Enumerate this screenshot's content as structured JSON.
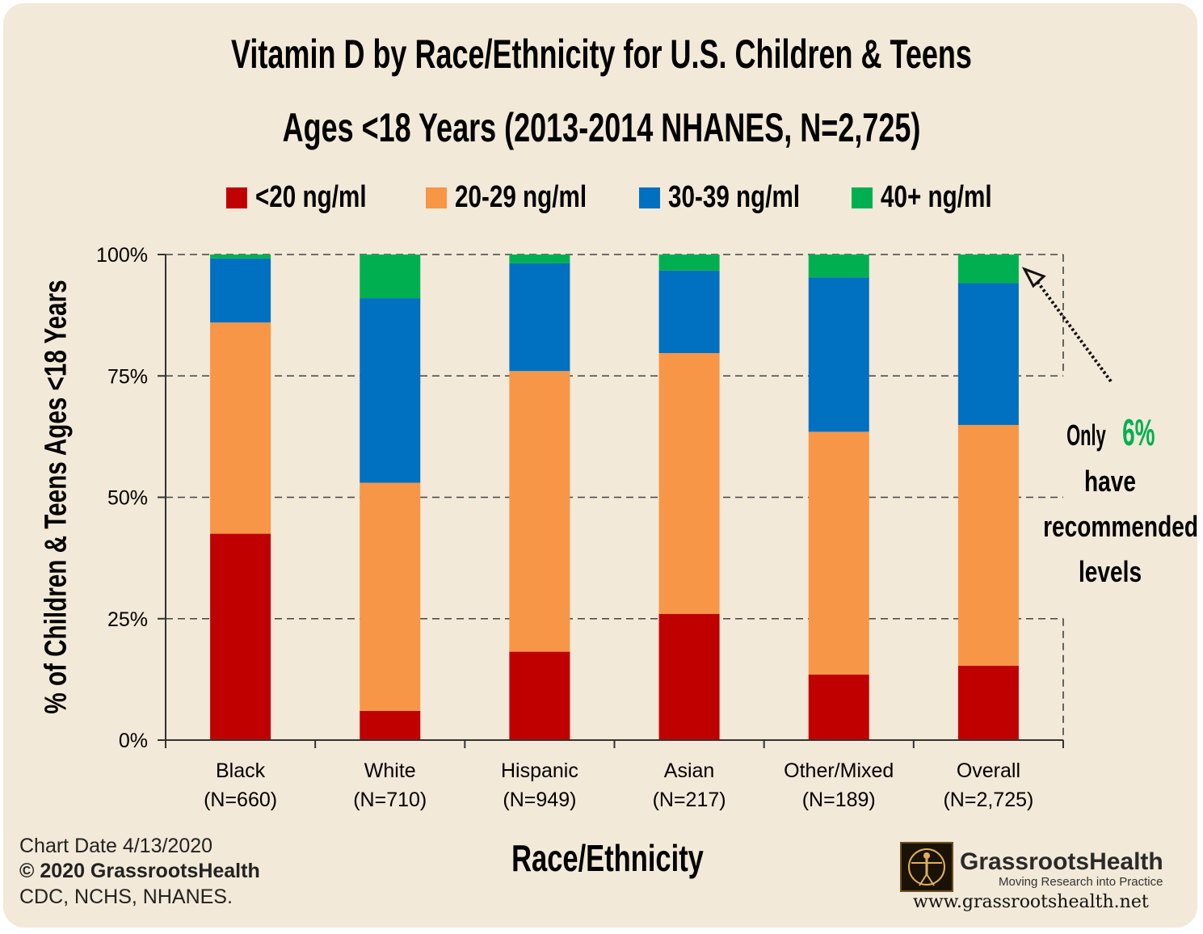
{
  "title_line1": "Vitamin D by Race/Ethnicity for U.S. Children & Teens",
  "title_line2": "Ages <18 Years (2013-2014 NHANES, N=2,725)",
  "chart_data": {
    "type": "bar",
    "stacked": true,
    "categories": [
      [
        "Black",
        "(N=660)"
      ],
      [
        "White",
        "(N=710)"
      ],
      [
        "Hispanic",
        "(N=949)"
      ],
      [
        "Asian",
        "(N=217)"
      ],
      [
        "Other/Mixed",
        "(N=189)"
      ],
      [
        "Overall",
        "(N=2,725)"
      ]
    ],
    "series": [
      {
        "name": "<20 ng/ml",
        "color": "#c00000",
        "values": [
          42.5,
          6.0,
          18.2,
          26.0,
          13.5,
          15.3
        ]
      },
      {
        "name": "20-29 ng/ml",
        "color": "#f79646",
        "values": [
          43.5,
          47.0,
          57.8,
          53.7,
          50.0,
          49.6
        ]
      },
      {
        "name": "30-39 ng/ml",
        "color": "#0070c0",
        "values": [
          13.2,
          38.0,
          22.2,
          17.0,
          31.8,
          29.2
        ]
      },
      {
        "name": "40+ ng/ml",
        "color": "#00b050",
        "values": [
          0.8,
          9.0,
          1.8,
          3.3,
          4.7,
          5.9
        ]
      }
    ],
    "ylabel": "% of Children & Teens Ages <18 Years",
    "xlabel": "Race/Ethnicity",
    "yticks": [
      "0%",
      "25%",
      "50%",
      "75%",
      "100%"
    ],
    "ylim": [
      0,
      100
    ],
    "grid": "dashed horizontal",
    "legend": "top"
  },
  "annotation": {
    "prefix": "Only",
    "highlight": "6%",
    "line2": "have",
    "line3": "recommended",
    "line4": "levels",
    "highlight_color": "#00b050"
  },
  "footer": {
    "line1": "Chart Date 4/13/2020",
    "line2": "© 2020 GrassrootsHealth",
    "line3": "CDC, NCHS, NHANES."
  },
  "logo": {
    "name": "GrassrootsHealth",
    "tagline": "Moving Research into Practice",
    "url": "www.grassrootshealth.net"
  }
}
